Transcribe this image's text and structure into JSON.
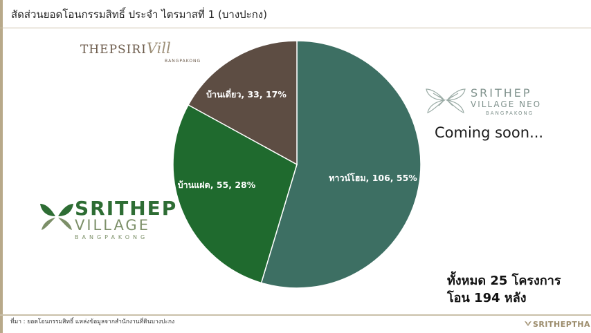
{
  "title": "สัดส่วนยอดโอนกรรมสิทธิ์ ประจำ ไตรมาสที่ 1 (บางปะกง)",
  "chart_data": {
    "type": "pie",
    "title": "สัดส่วนยอดโอนกรรมสิทธิ์ ประจำ ไตรมาสที่ 1 (บางปะกง)",
    "slices": [
      {
        "label": "ทาวน์โฮม, 106, 55%",
        "category": "ทาวน์โฮม",
        "value": 106,
        "percent": 55,
        "color": "#3d6f63"
      },
      {
        "label": "บ้านแฝด, 55, 28%",
        "category": "บ้านแฝด",
        "value": 55,
        "percent": 28,
        "color": "#1f6a2e"
      },
      {
        "label": "บ้านเดี่ยว, 33, 17%",
        "category": "บ้านเดี่ยว",
        "value": 33,
        "percent": 17,
        "color": "#5d4d43"
      }
    ]
  },
  "logos": {
    "thepsiri": {
      "main": "THEPSIRI",
      "script": "Vill",
      "sub": "BANGPAKONG"
    },
    "neo": {
      "line1": "SRITHEP",
      "line2": "VILLAGE NEO",
      "line3": "BANGPAKONG"
    },
    "village": {
      "line1": "SRITHEP",
      "line2": "VILLAGE",
      "line3": "BANGPAKONG"
    }
  },
  "coming_soon": "Coming soon...",
  "summary": {
    "line1": "ทั้งหมด 25 โครงการ",
    "line2": "โอน 194 หลัง"
  },
  "source": "ที่มา : ยอดโอนกรรมสิทธิ์ แหล่งข้อมูลจากสำนักงานที่ดินบางปะกง",
  "brand": "SRITHEPTHAI"
}
